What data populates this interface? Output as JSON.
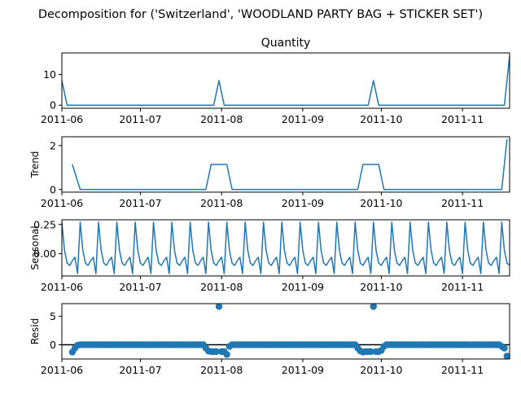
{
  "suptitle": "Decomposition for ('Switzerland', 'WOODLAND PARTY BAG + STICKER SET')",
  "colors": {
    "series": "#1f77b4",
    "zero_line": "#000000",
    "axes": "#000000"
  },
  "chart_data": [
    {
      "type": "line",
      "panel": "observed",
      "title": "Quantity",
      "ylabel": "",
      "ylim": [
        -1,
        17
      ],
      "yticks": [
        0,
        10
      ],
      "xlim": [
        "2011-06-01",
        "2011-11-19"
      ],
      "xticks": [
        "2011-06",
        "2011-07",
        "2011-08",
        "2011-09",
        "2011-10",
        "2011-11"
      ],
      "points": [
        [
          "2011-06-01",
          8
        ],
        [
          "2011-06-03",
          0
        ],
        [
          "2011-07-29",
          0
        ],
        [
          "2011-07-31",
          8
        ],
        [
          "2011-08-02",
          0
        ],
        [
          "2011-09-26",
          0
        ],
        [
          "2011-09-28",
          8
        ],
        [
          "2011-09-30",
          0
        ],
        [
          "2011-11-17",
          0
        ],
        [
          "2011-11-19",
          16
        ]
      ]
    },
    {
      "type": "line",
      "panel": "trend",
      "title": "",
      "ylabel": "Trend",
      "ylim": [
        -0.12,
        2.4
      ],
      "yticks": [
        0,
        2
      ],
      "xlim": [
        "2011-06-01",
        "2011-11-19"
      ],
      "xticks": [
        "2011-06",
        "2011-07",
        "2011-08",
        "2011-09",
        "2011-10",
        "2011-11"
      ],
      "points": [
        [
          "2011-06-05",
          1.14
        ],
        [
          "2011-06-08",
          0
        ],
        [
          "2011-07-26",
          0
        ],
        [
          "2011-07-28",
          1.14
        ],
        [
          "2011-08-03",
          1.14
        ],
        [
          "2011-08-05",
          0
        ],
        [
          "2011-09-22",
          0
        ],
        [
          "2011-09-24",
          1.14
        ],
        [
          "2011-09-30",
          1.14
        ],
        [
          "2011-10-02",
          0
        ],
        [
          "2011-11-16",
          0
        ],
        [
          "2011-11-18",
          2.29
        ]
      ]
    },
    {
      "type": "line",
      "panel": "seasonal",
      "title": "",
      "ylabel": "Seasonal",
      "ylim": [
        -0.19,
        0.29
      ],
      "yticks": [
        0.25,
        0.0
      ],
      "ytick_labels": [
        "0.25",
        "0.00"
      ],
      "xlim": [
        "2011-06-01",
        "2011-11-19"
      ],
      "xticks": [
        "2011-06",
        "2011-07",
        "2011-08",
        "2011-09",
        "2011-10",
        "2011-11"
      ],
      "period_days": 7,
      "start": "2011-06-01",
      "end": "2011-11-19",
      "cycle": [
        0.27,
        0.03,
        -0.08,
        -0.1,
        -0.06,
        -0.03,
        -0.17
      ]
    },
    {
      "type": "scatter",
      "panel": "resid",
      "title": "",
      "ylabel": "Resid",
      "ylim": [
        -2.5,
        7.2
      ],
      "yticks": [
        0,
        5
      ],
      "xlim": [
        "2011-06-01",
        "2011-11-19"
      ],
      "xticks": [
        "2011-06",
        "2011-07",
        "2011-08",
        "2011-09",
        "2011-10",
        "2011-11"
      ],
      "zero_line": true,
      "default_value": 0.0,
      "points": [
        [
          "2011-06-05",
          -1.3
        ],
        [
          "2011-06-06",
          -0.6
        ],
        [
          "2011-06-07",
          -0.1
        ],
        [
          "2011-07-26",
          -0.6
        ],
        [
          "2011-07-27",
          -1.1
        ],
        [
          "2011-07-28",
          -1.2
        ],
        [
          "2011-07-29",
          -1.2
        ],
        [
          "2011-07-30",
          -1.2
        ],
        [
          "2011-07-31",
          6.7
        ],
        [
          "2011-08-01",
          -1.2
        ],
        [
          "2011-08-02",
          -1.2
        ],
        [
          "2011-08-03",
          -1.7
        ],
        [
          "2011-08-04",
          -0.3
        ],
        [
          "2011-09-22",
          -0.6
        ],
        [
          "2011-09-23",
          -1.1
        ],
        [
          "2011-09-24",
          -1.3
        ],
        [
          "2011-09-25",
          -1.2
        ],
        [
          "2011-09-26",
          -1.2
        ],
        [
          "2011-09-27",
          -1.2
        ],
        [
          "2011-09-28",
          6.7
        ],
        [
          "2011-09-29",
          -1.2
        ],
        [
          "2011-09-30",
          -1.2
        ],
        [
          "2011-10-01",
          -1.0
        ],
        [
          "2011-10-02",
          -0.3
        ],
        [
          "2011-11-16",
          -0.3
        ],
        [
          "2011-11-17",
          -0.6
        ],
        [
          "2011-11-18",
          -2.0
        ]
      ]
    }
  ]
}
